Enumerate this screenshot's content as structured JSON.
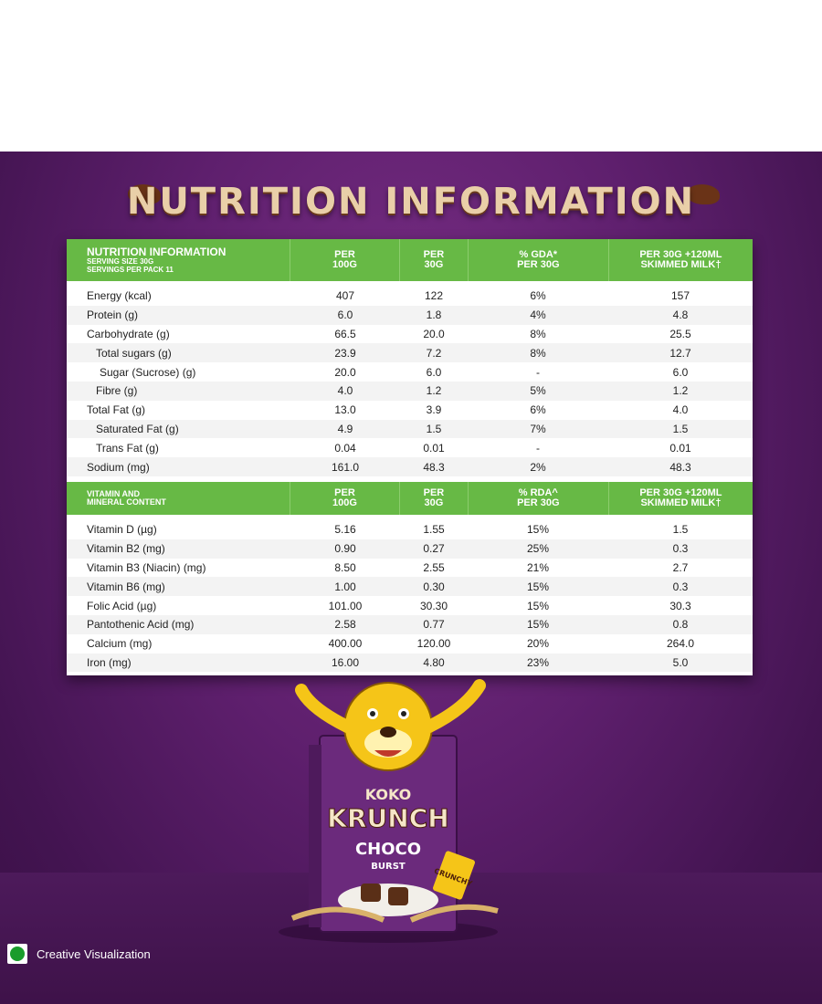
{
  "heading": "NUTRITION INFORMATION",
  "header1": {
    "title": "NUTRITION INFORMATION",
    "serving_size": "SERVING SIZE 30G",
    "servings_per_pack": "SERVINGS PER PACK 11",
    "col1_a": "PER",
    "col1_b": "100G",
    "col2_a": "PER",
    "col2_b": "30G",
    "col3_a": "% GDA*",
    "col3_b": "PER 30G",
    "col4_a": "PER 30G +120ML",
    "col4_b": "SKIMMED MILK†"
  },
  "nutrition_rows": [
    {
      "name": "Energy (kcal)",
      "per100": "407",
      "per30": "122",
      "gda": "6%",
      "milk": "157",
      "indent": 0
    },
    {
      "name": "Protein (g)",
      "per100": "6.0",
      "per30": "1.8",
      "gda": "4%",
      "milk": "4.8",
      "indent": 0
    },
    {
      "name": "Carbohydrate (g)",
      "per100": "66.5",
      "per30": "20.0",
      "gda": "8%",
      "milk": "25.5",
      "indent": 0
    },
    {
      "name": "Total sugars (g)",
      "per100": "23.9",
      "per30": "7.2",
      "gda": "8%",
      "milk": "12.7",
      "indent": 1
    },
    {
      "name": "Sugar (Sucrose) (g)",
      "per100": "20.0",
      "per30": "6.0",
      "gda": "-",
      "milk": "6.0",
      "indent": 2
    },
    {
      "name": "Fibre (g)",
      "per100": "4.0",
      "per30": "1.2",
      "gda": "5%",
      "milk": "1.2",
      "indent": 1
    },
    {
      "name": "Total Fat (g)",
      "per100": "13.0",
      "per30": "3.9",
      "gda": "6%",
      "milk": "4.0",
      "indent": 0
    },
    {
      "name": "Saturated Fat (g)",
      "per100": "4.9",
      "per30": "1.5",
      "gda": "7%",
      "milk": "1.5",
      "indent": 1
    },
    {
      "name": "Trans Fat (g)",
      "per100": "0.04",
      "per30": "0.01",
      "gda": "-",
      "milk": "0.01",
      "indent": 1
    },
    {
      "name": "Sodium (mg)",
      "per100": "161.0",
      "per30": "48.3",
      "gda": "2%",
      "milk": "48.3",
      "indent": 0
    }
  ],
  "header2": {
    "title_a": "VITAMIN AND",
    "title_b": "MINERAL CONTENT",
    "col1_a": "PER",
    "col1_b": "100G",
    "col2_a": "PER",
    "col2_b": "30G",
    "col3_a": "% RDA^",
    "col3_b": "PER 30G",
    "col4_a": "PER 30G +120ML",
    "col4_b": "SKIMMED MILK†"
  },
  "vitamin_rows": [
    {
      "name": "Vitamin D (µg)",
      "per100": "5.16",
      "per30": "1.55",
      "rda": "15%",
      "milk": "1.5"
    },
    {
      "name": "Vitamin B2 (mg)",
      "per100": "0.90",
      "per30": "0.27",
      "rda": "25%",
      "milk": "0.3"
    },
    {
      "name": "Vitamin B3 (Niacin) (mg)",
      "per100": "8.50",
      "per30": "2.55",
      "rda": "21%",
      "milk": "2.7"
    },
    {
      "name": "Vitamin B6 (mg)",
      "per100": "1.00",
      "per30": "0.30",
      "rda": "15%",
      "milk": "0.3"
    },
    {
      "name": "Folic Acid (µg)",
      "per100": "101.00",
      "per30": "30.30",
      "rda": "15%",
      "milk": "30.3"
    },
    {
      "name": "Pantothenic Acid (mg)",
      "per100": "2.58",
      "per30": "0.77",
      "rda": "15%",
      "milk": "0.8"
    },
    {
      "name": "Calcium (mg)",
      "per100": "400.00",
      "per30": "120.00",
      "rda": "20%",
      "milk": "264.0"
    },
    {
      "name": "Iron  (mg)",
      "per100": "16.00",
      "per30": "4.80",
      "rda": "23%",
      "milk": "5.0"
    }
  ],
  "product": {
    "brand_top": "KOKO",
    "brand_main": "KRUNCH",
    "variant_a": "CHOCO",
    "variant_b": "BURST",
    "badge": "CRUNCHY"
  },
  "legend": "Creative Visualization",
  "colors": {
    "green": "#67b945",
    "purple": "#5e1f6d",
    "veg_mark": "#1a9c2c"
  }
}
